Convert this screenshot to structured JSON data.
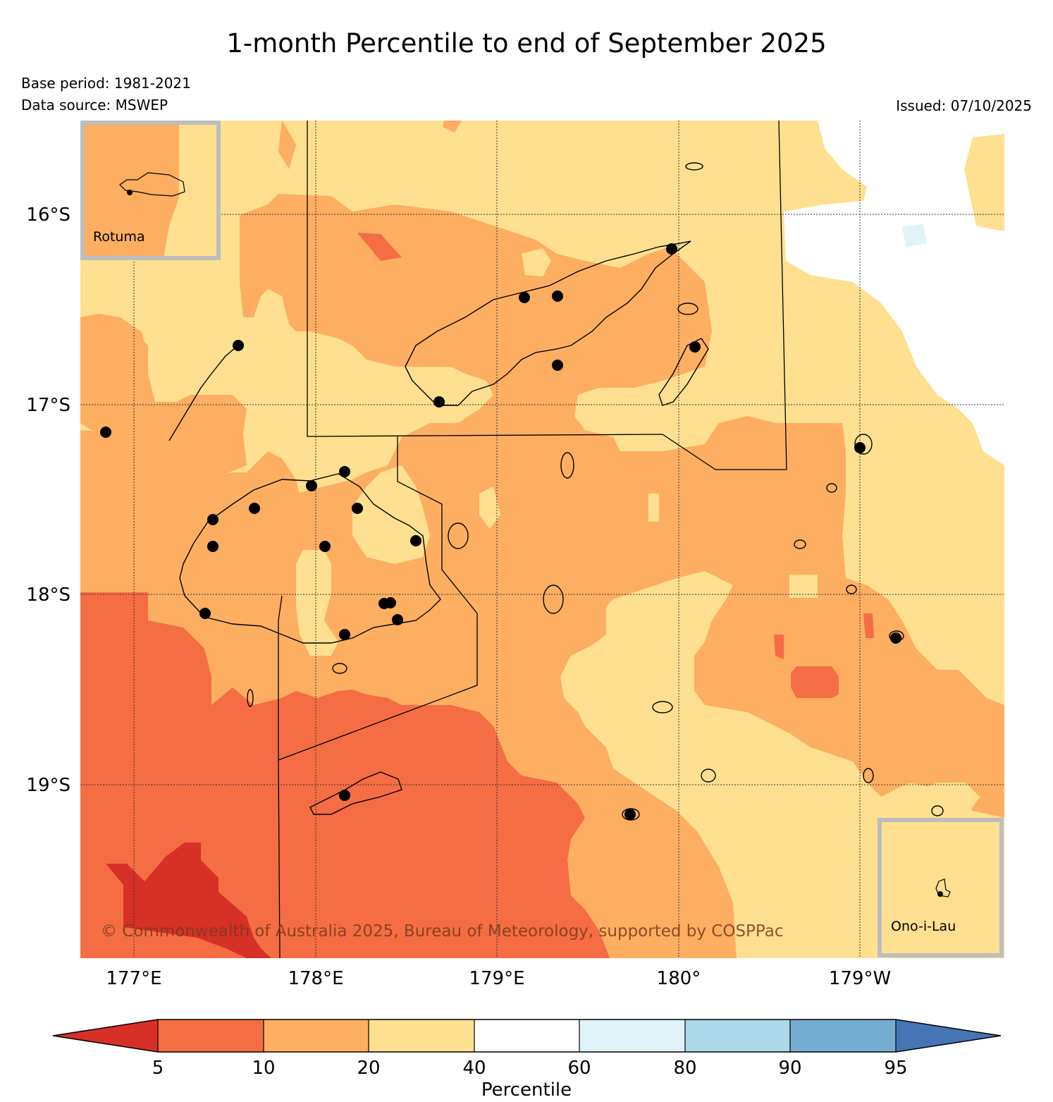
{
  "title": "1-month Percentile to end of September 2025",
  "base_period": "Base period: 1981-2021",
  "data_source": "Data source: MSWEP",
  "issued": "Issued: 07/10/2025",
  "copyright": "© Commonwealth of Australia 2025, Bureau of Meteorology, supported by COSPPac",
  "insets": {
    "rotuma": "Rotuma",
    "ono": "Ono-i-Lau"
  },
  "lat_ticks": [
    "16°S",
    "17°S",
    "18°S",
    "19°S"
  ],
  "lon_ticks": [
    "177°E",
    "178°E",
    "179°E",
    "180°",
    "179°W"
  ],
  "colorbar": {
    "label": "Percentile",
    "ticks": [
      "5",
      "10",
      "20",
      "40",
      "60",
      "80",
      "90",
      "95"
    ],
    "colors": {
      "below_5": "#d73027",
      "5_10": "#f46d43",
      "10_20": "#fdae61",
      "20_40": "#fee090",
      "40_60": "#ffffff",
      "60_80": "#e0f3f8",
      "80_90": "#abd9e9",
      "90_95": "#74add1",
      "above_95": "#4575b4"
    }
  }
}
